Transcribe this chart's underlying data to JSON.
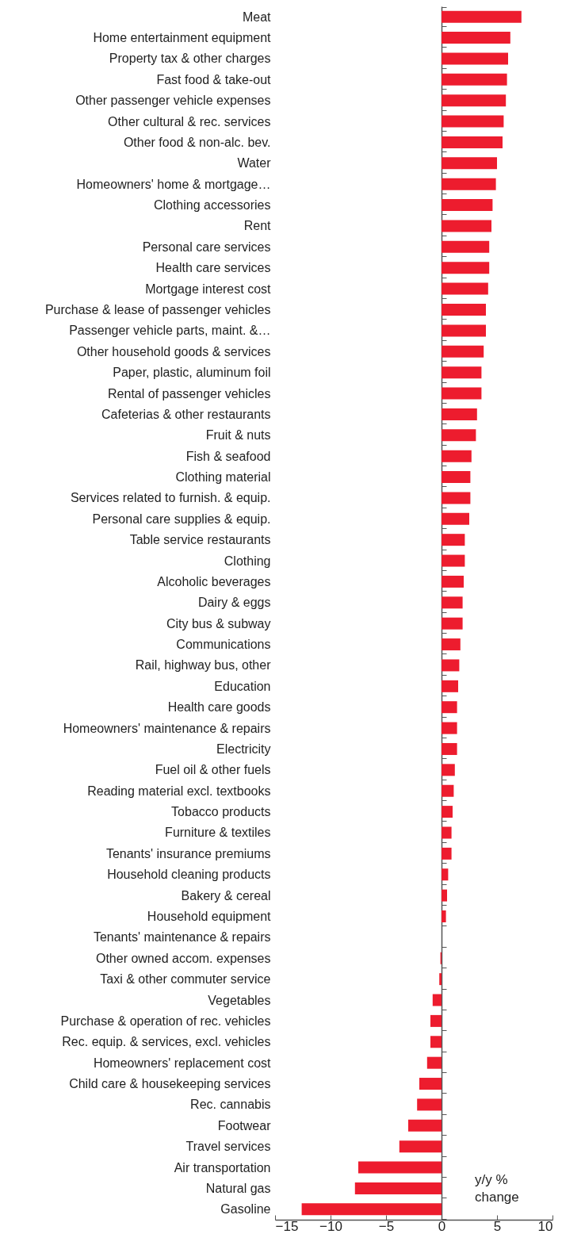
{
  "chart_data": {
    "type": "bar",
    "orientation": "horizontal",
    "color": "#ed1c2e",
    "categories": [
      "Meat",
      "Home entertainment equipment",
      "Property tax & other charges",
      "Fast food & take-out",
      "Other passenger vehicle expenses",
      "Other cultural & rec. services",
      "Other food & non-alc. bev.",
      "Water",
      "Homeowners' home & mortgage…",
      "Clothing accessories",
      "Rent",
      "Personal care services",
      "Health care services",
      "Mortgage interest cost",
      "Purchase & lease of passenger vehicles",
      "Passenger vehicle parts, maint. &…",
      "Other household goods & services",
      "Paper, plastic, aluminum foil",
      "Rental of passenger vehicles",
      "Cafeterias & other restaurants",
      "Fruit & nuts",
      "Fish & seafood",
      "Clothing material",
      "Services related to furnish. & equip.",
      "Personal care supplies & equip.",
      "Table service restaurants",
      "Clothing",
      "Alcoholic beverages",
      "Dairy & eggs",
      "City bus & subway",
      "Communications",
      "Rail, highway bus, other",
      "Education",
      "Health care goods",
      "Homeowners' maintenance & repairs",
      "Electricity",
      "Fuel oil & other fuels",
      "Reading material excl. textbooks",
      "Tobacco products",
      "Furniture & textiles",
      "Tenants' insurance premiums",
      "Household cleaning products",
      "Bakery & cereal",
      "Household equipment",
      "Tenants' maintenance & repairs",
      "Other owned accom. expenses",
      "Taxi & other commuter service",
      "Vegetables",
      "Purchase & operation of rec. vehicles",
      "Rec. equip. & services, excl. vehicles",
      "Homeowners' replacement cost",
      "Child care & housekeeping services",
      "Rec. cannabis",
      "Footwear",
      "Travel services",
      "Air transportation",
      "Natural gas",
      "Gasoline"
    ],
    "values": [
      7.2,
      6.2,
      6.0,
      5.9,
      5.8,
      5.6,
      5.5,
      5.0,
      4.9,
      4.6,
      4.5,
      4.3,
      4.3,
      4.2,
      4.0,
      4.0,
      3.8,
      3.6,
      3.6,
      3.2,
      3.1,
      2.7,
      2.6,
      2.6,
      2.5,
      2.1,
      2.1,
      2.0,
      1.9,
      1.9,
      1.7,
      1.6,
      1.5,
      1.4,
      1.4,
      1.4,
      1.2,
      1.1,
      1.0,
      0.9,
      0.9,
      0.6,
      0.5,
      0.4,
      0.0,
      -0.1,
      -0.2,
      -0.8,
      -1.0,
      -1.0,
      -1.3,
      -2.0,
      -2.2,
      -3.0,
      -3.8,
      -7.5,
      -7.8,
      -12.6
    ],
    "xlim": [
      -15,
      10
    ],
    "xticks": [
      -15,
      -10,
      -5,
      0,
      5,
      10
    ],
    "annotations": [
      "y/y % change"
    ]
  }
}
